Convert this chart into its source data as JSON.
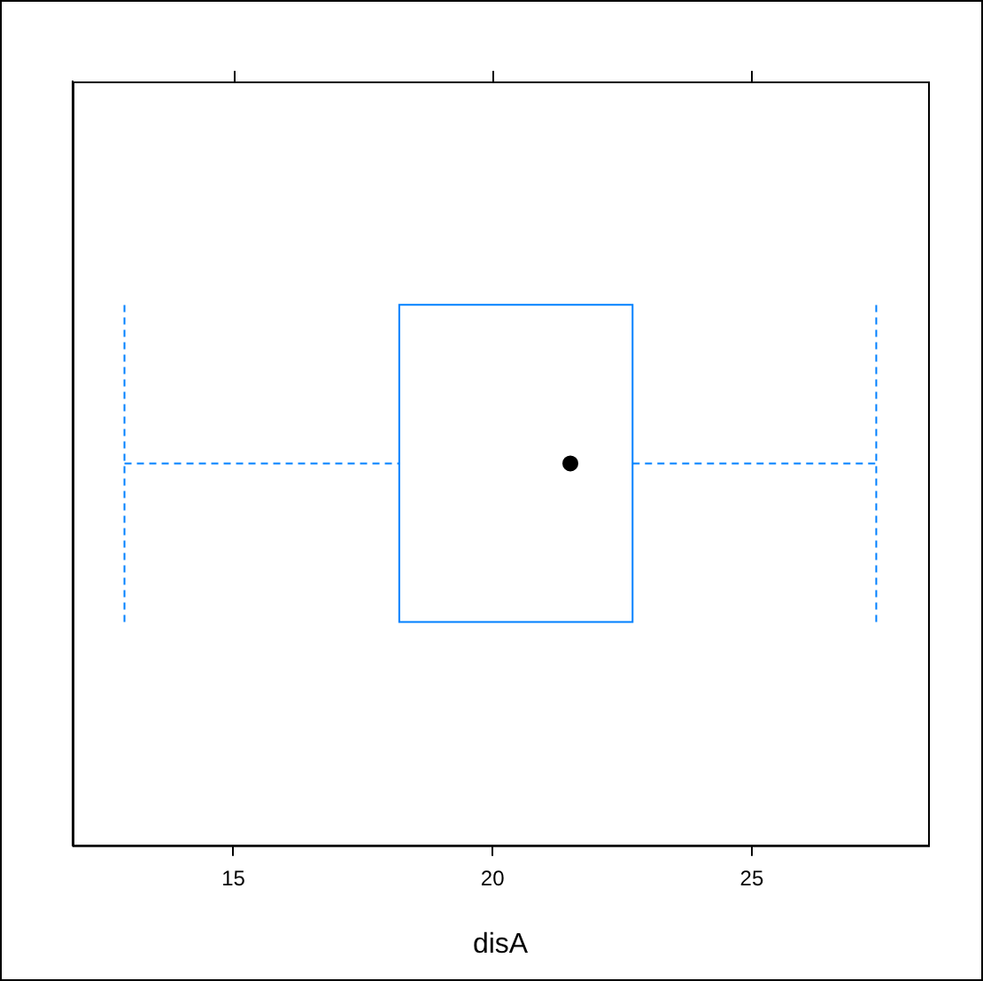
{
  "chart_data": {
    "type": "box",
    "xlabel": "disA",
    "categories": [
      null
    ],
    "orientation": "horizontal",
    "color": "#0080ff",
    "marker": "circle",
    "boxes": [
      {
        "low": 12.9,
        "q1": 18.2,
        "median": 21.5,
        "q3": 22.7,
        "high": 27.4
      }
    ],
    "xlim": [
      11.9,
      28.4
    ],
    "xticks": [
      15,
      20,
      25
    ],
    "tick_labels": "x",
    "grid": false
  }
}
